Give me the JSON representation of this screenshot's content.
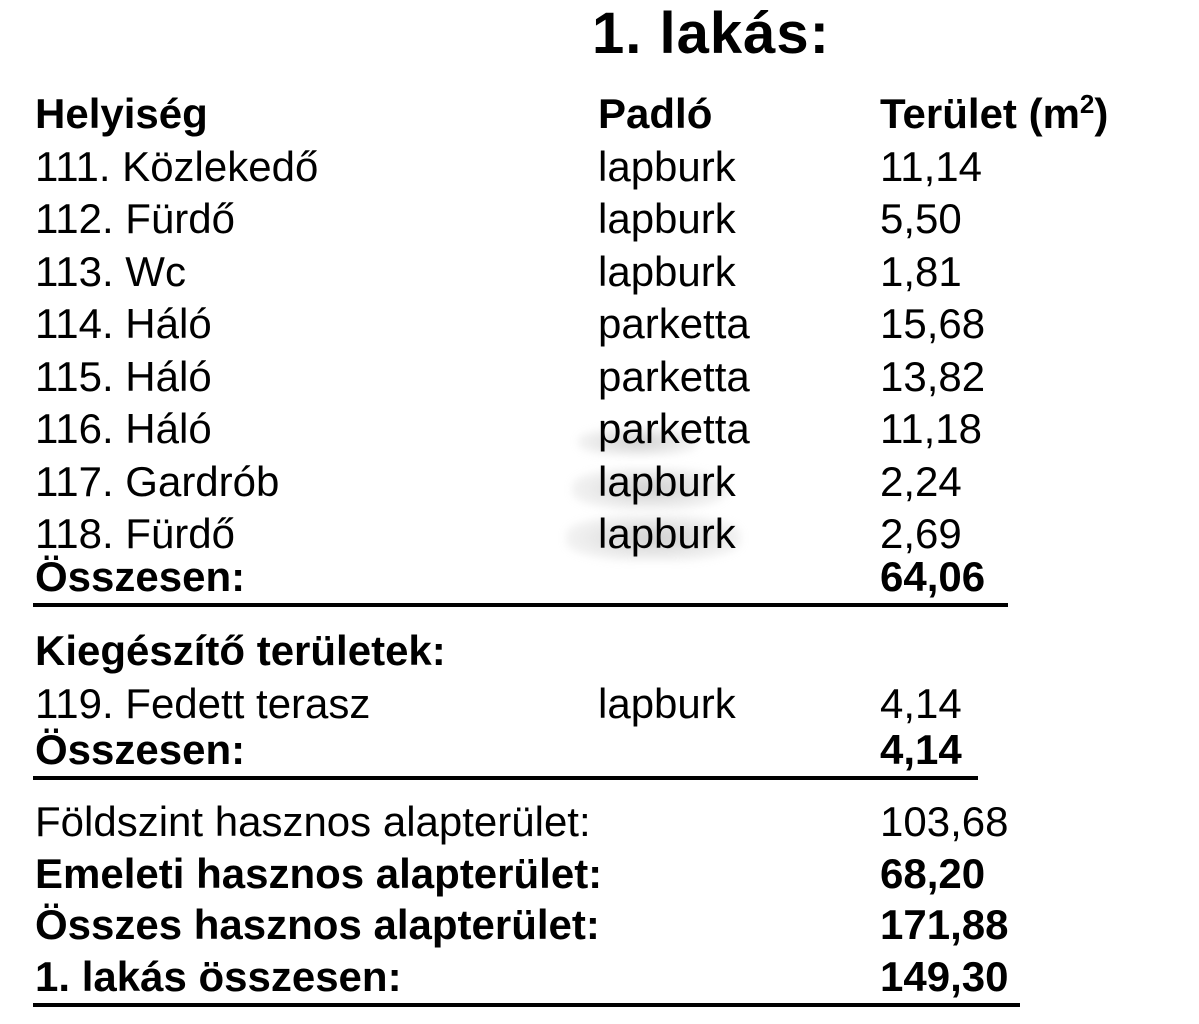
{
  "title": "1. lakás:",
  "main_table": {
    "headers": {
      "room": "Helyiség",
      "floor": "Padló",
      "area_prefix": "Terület (m",
      "area_sup": "2",
      "area_suffix": ")"
    },
    "rows": [
      {
        "room": "111. Közlekedő",
        "floor": "lapburk",
        "area": "11,14"
      },
      {
        "room": "112. Fürdő",
        "floor": "lapburk",
        "area": "5,50"
      },
      {
        "room": "113. Wc",
        "floor": "lapburk",
        "area": "1,81"
      },
      {
        "room": "114. Háló",
        "floor": "parketta",
        "area": "15,68"
      },
      {
        "room": "115. Háló",
        "floor": "parketta",
        "area": "13,82"
      },
      {
        "room": "116. Háló",
        "floor": "parketta",
        "area": "11,18"
      },
      {
        "room": "117. Gardrób",
        "floor": "lapburk",
        "area": "2,24"
      },
      {
        "room": "118. Fürdő",
        "floor": "lapburk",
        "area": "2,69"
      }
    ],
    "total": {
      "label": "Összesen:",
      "value": "64,06"
    }
  },
  "additional_section": {
    "heading": "Kiegészítő területek:",
    "rows": [
      {
        "room": "119. Fedett terasz",
        "floor": "lapburk",
        "area": "4,14"
      }
    ],
    "total": {
      "label": "Összesen:",
      "value": "4,14"
    }
  },
  "summary": {
    "rows": [
      {
        "label": "Földszint hasznos alapterület:",
        "value": "103,68"
      },
      {
        "label": "Emeleti hasznos alapterület:",
        "value": "68,20"
      },
      {
        "label": "Összes hasznos alapterület:",
        "value": "171,88"
      },
      {
        "label": "1. lakás összesen:",
        "value": "149,30"
      }
    ]
  },
  "colors": {
    "text": "#000000",
    "background": "#ffffff",
    "rule": "#000000",
    "watermark": "#c9c9c9"
  }
}
